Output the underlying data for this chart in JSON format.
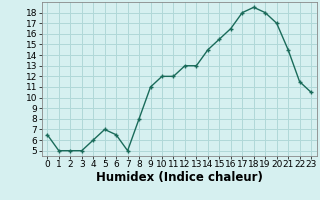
{
  "x": [
    0,
    1,
    2,
    3,
    4,
    5,
    6,
    7,
    8,
    9,
    10,
    11,
    12,
    13,
    14,
    15,
    16,
    17,
    18,
    19,
    20,
    21,
    22,
    23
  ],
  "y": [
    6.5,
    5.0,
    5.0,
    5.0,
    6.0,
    7.0,
    6.5,
    5.0,
    8.0,
    11.0,
    12.0,
    12.0,
    13.0,
    13.0,
    14.5,
    15.5,
    16.5,
    18.0,
    18.5,
    18.0,
    17.0,
    14.5,
    11.5,
    10.5
  ],
  "line_color": "#1a6b5a",
  "marker": "+",
  "bg_color": "#d6f0f0",
  "grid_color": "#b0d8d8",
  "xlabel": "Humidex (Indice chaleur)",
  "ylabel": "",
  "xlim": [
    -0.5,
    23.5
  ],
  "ylim": [
    4.5,
    19.0
  ],
  "yticks": [
    5,
    6,
    7,
    8,
    9,
    10,
    11,
    12,
    13,
    14,
    15,
    16,
    17,
    18
  ],
  "xticks": [
    0,
    1,
    2,
    3,
    4,
    5,
    6,
    7,
    8,
    9,
    10,
    11,
    12,
    13,
    14,
    15,
    16,
    17,
    18,
    19,
    20,
    21,
    22,
    23
  ],
  "tick_fontsize": 6.5,
  "xlabel_fontsize": 8.5
}
